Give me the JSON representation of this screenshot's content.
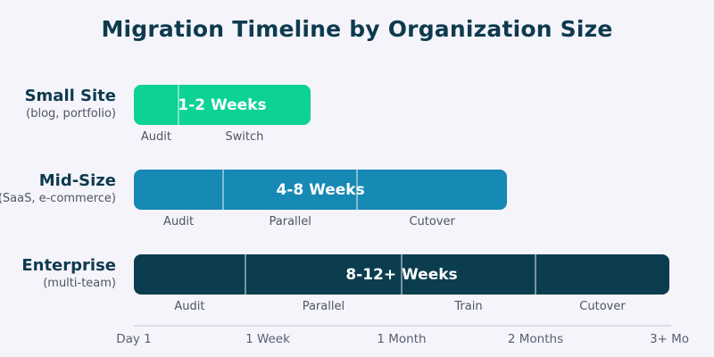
{
  "page": {
    "background": "#f5f4fb"
  },
  "chart_data": {
    "type": "bar",
    "variant": "horizontal-gantt-timeline",
    "title": "Migration Timeline by Organization Size",
    "title_color": "#0e3a4e",
    "axis": {
      "xlabel": "",
      "ticks": [
        {
          "label": "Day 1",
          "pos_pct": 0
        },
        {
          "label": "1 Week",
          "pos_pct": 25
        },
        {
          "label": "1 Month",
          "pos_pct": 50
        },
        {
          "label": "2 Months",
          "pos_pct": 75
        },
        {
          "label": "3+ Mo",
          "pos_pct": 100
        }
      ],
      "line_color": "#dcdce5",
      "label_color": "#585e72",
      "grid": false
    },
    "legend": null,
    "rows": [
      {
        "label": "Small Site",
        "sublabel": "(blog, portfolio)",
        "duration_label": "1-2 Weeks",
        "color": "#0cd295",
        "end_pct": 33,
        "segments": [
          {
            "name": "Audit",
            "start_pct": 0,
            "end_pct": 8.3
          },
          {
            "name": "Switch",
            "start_pct": 8.3,
            "end_pct": 33
          }
        ]
      },
      {
        "label": "Mid-Size",
        "sublabel": "(SaaS, e-commerce)",
        "duration_label": "4-8 Weeks",
        "color": "#1689b4",
        "end_pct": 69.7,
        "segments": [
          {
            "name": "Audit",
            "start_pct": 0,
            "end_pct": 16.7
          },
          {
            "name": "Parallel",
            "start_pct": 16.7,
            "end_pct": 41.7
          },
          {
            "name": "Cutover",
            "start_pct": 41.7,
            "end_pct": 69.7
          }
        ]
      },
      {
        "label": "Enterprise",
        "sublabel": "(multi-team)",
        "duration_label": "8-12+ Weeks",
        "color": "#0b3d4f",
        "end_pct": 100,
        "segments": [
          {
            "name": "Audit",
            "start_pct": 0,
            "end_pct": 20.8
          },
          {
            "name": "Parallel",
            "start_pct": 20.8,
            "end_pct": 50
          },
          {
            "name": "Train",
            "start_pct": 50,
            "end_pct": 75
          },
          {
            "name": "Cutover",
            "start_pct": 75,
            "end_pct": 100
          }
        ]
      }
    ],
    "text_colors": {
      "row_label": "#0e3a4e",
      "sublabel": "#4d5565",
      "segment_label": "#4d5565",
      "duration_label": "#ffffff"
    }
  }
}
